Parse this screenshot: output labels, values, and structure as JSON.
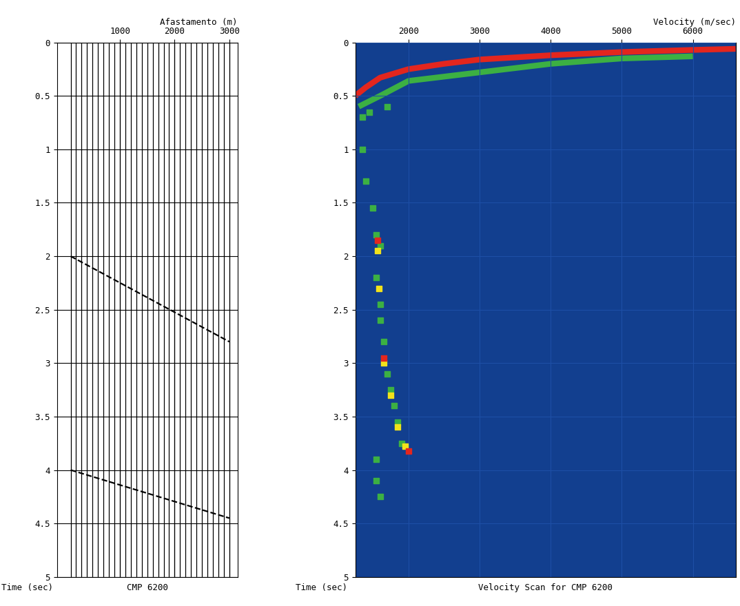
{
  "chart_data": [
    {
      "type": "gather",
      "title": "CMP 6200",
      "x_label": "Afastamento (m)",
      "y_label": "Time (sec)",
      "xlim": [
        -150,
        3150
      ],
      "ylim": [
        5,
        0
      ],
      "xticks": [
        1000,
        2000,
        3000
      ],
      "yticks": [
        0,
        0.5,
        1,
        1.5,
        2,
        2.5,
        3,
        3.5,
        4,
        4.5,
        5
      ],
      "grid": true,
      "color": "#000000",
      "traces": [
        100,
        200,
        300,
        400,
        500,
        600,
        700,
        800,
        900,
        1000,
        1100,
        1200,
        1300,
        1400,
        1500,
        1600,
        1700,
        1800,
        1900,
        2000,
        2100,
        2200,
        2300,
        2400,
        2500,
        2600,
        2700,
        2800,
        2900,
        3000
      ],
      "events": [
        {
          "x": [
            100,
            3000
          ],
          "y": [
            2.0,
            2.8
          ],
          "line_style": "dashed"
        },
        {
          "x": [
            100,
            3000
          ],
          "y": [
            4.0,
            4.45
          ],
          "line_style": "dashed"
        }
      ]
    },
    {
      "type": "velocity_scan",
      "title": "Velocity Scan for CMP 6200",
      "x_label": "Velocity (m/sec)",
      "y_label": "Time (sec)",
      "xlim": [
        1250,
        6600
      ],
      "ylim": [
        5,
        0
      ],
      "xticks": [
        2000,
        3000,
        4000,
        5000,
        6000
      ],
      "yticks": [
        0,
        0.5,
        1,
        1.5,
        2,
        2.5,
        3,
        3.5,
        4,
        4.5,
        5
      ],
      "grid": true,
      "series": [
        {
          "type": "line",
          "color": "#3cb043",
          "x": [
            1300,
            1600,
            2000,
            3000,
            4000,
            5000,
            6000
          ],
          "y": [
            0.6,
            0.5,
            0.36,
            0.28,
            0.2,
            0.15,
            0.13
          ]
        },
        {
          "type": "line",
          "color": "#e3261e",
          "x": [
            1250,
            1400,
            1600,
            2000,
            2500,
            3000,
            4000,
            5000,
            6000,
            6600
          ],
          "y": [
            0.5,
            0.42,
            0.33,
            0.25,
            0.2,
            0.16,
            0.12,
            0.09,
            0.07,
            0.06
          ]
        },
        {
          "type": "scatter",
          "color": "#3cb043",
          "marker": "s",
          "x": [
            1350,
            1450,
            1700,
            1350,
            1400,
            1500,
            1550,
            1600,
            1550,
            1600,
            1600,
            1650,
            1700,
            1750,
            1800,
            1850,
            1900,
            1550,
            1550,
            1600
          ],
          "y": [
            0.7,
            0.65,
            0.6,
            1.0,
            1.3,
            1.55,
            1.8,
            1.9,
            2.2,
            2.45,
            2.6,
            2.8,
            3.1,
            3.25,
            3.4,
            3.55,
            3.75,
            3.9,
            4.1,
            4.25
          ]
        },
        {
          "type": "scatter",
          "color": "#f2e21b",
          "marker": "s",
          "x": [
            1560,
            1580,
            1650,
            1750,
            1850,
            1950
          ],
          "y": [
            1.95,
            2.3,
            3.0,
            3.3,
            3.6,
            3.78
          ]
        },
        {
          "type": "scatter",
          "color": "#e3261e",
          "marker": "s",
          "x": [
            1560,
            1650,
            2000
          ],
          "y": [
            1.85,
            2.95,
            3.82
          ]
        }
      ]
    }
  ]
}
